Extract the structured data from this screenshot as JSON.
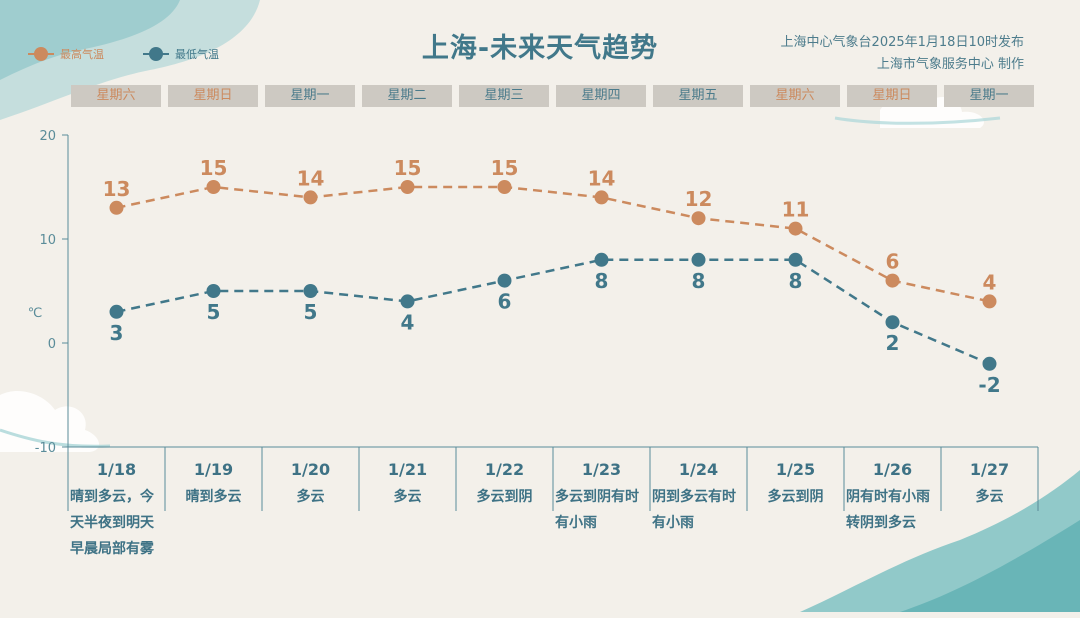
{
  "header": {
    "title": "上海-未来天气趋势",
    "publisher_line1": "上海中心气象台2025年1月18日10时发布",
    "publisher_line2": "上海市气象服务中心 制作"
  },
  "legend": {
    "high_label": "最高气温",
    "low_label": "最低气温"
  },
  "colors": {
    "high": "#cc8a5e",
    "low": "#41788a",
    "axis": "#5a8c99"
  },
  "weekdays": [
    "星期六",
    "星期日",
    "星期一",
    "星期二",
    "星期三",
    "星期四",
    "星期五",
    "星期六",
    "星期日",
    "星期一"
  ],
  "weekend_flags": [
    true,
    true,
    false,
    false,
    false,
    false,
    false,
    true,
    true,
    false
  ],
  "days": [
    {
      "date": "1/18",
      "condition": "晴到多云，今天半夜到明天早晨局部有雾"
    },
    {
      "date": "1/19",
      "condition": "晴到多云"
    },
    {
      "date": "1/20",
      "condition": "多云"
    },
    {
      "date": "1/21",
      "condition": "多云"
    },
    {
      "date": "1/22",
      "condition": "多云到阴"
    },
    {
      "date": "1/23",
      "condition": "多云到阴有时有小雨"
    },
    {
      "date": "1/24",
      "condition": "阴到多云有时有小雨"
    },
    {
      "date": "1/25",
      "condition": "多云到阴"
    },
    {
      "date": "1/26",
      "condition": "阴有时有小雨转阴到多云"
    },
    {
      "date": "1/27",
      "condition": "多云"
    }
  ],
  "chart_data": {
    "type": "line",
    "ylabel": "℃",
    "ylim": [
      -10,
      20
    ],
    "yticks": [
      -10,
      0,
      10,
      20
    ],
    "x": [
      "1/18",
      "1/19",
      "1/20",
      "1/21",
      "1/22",
      "1/23",
      "1/24",
      "1/25",
      "1/26",
      "1/27"
    ],
    "series": [
      {
        "name": "最高气温",
        "values": [
          13,
          15,
          14,
          15,
          15,
          14,
          12,
          11,
          6,
          4
        ]
      },
      {
        "name": "最低气温",
        "values": [
          3,
          5,
          5,
          4,
          6,
          8,
          8,
          8,
          2,
          -2
        ]
      }
    ]
  }
}
